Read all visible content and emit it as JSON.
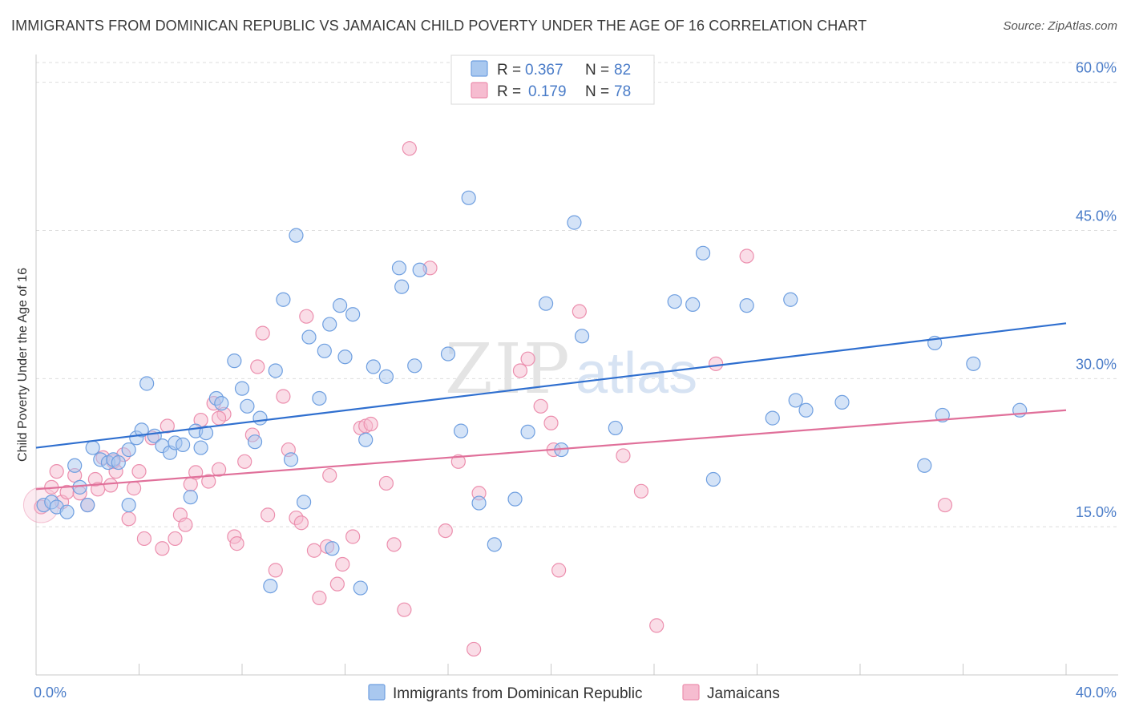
{
  "title": "IMMIGRANTS FROM DOMINICAN REPUBLIC VS JAMAICAN CHILD POVERTY UNDER THE AGE OF 16 CORRELATION CHART",
  "source": "Source: ZipAtlas.com",
  "watermark": {
    "part1": "ZIP",
    "part2": "atlas"
  },
  "colors": {
    "blue_fill": "#a9c8ef",
    "blue_stroke": "#6f9fe0",
    "blue_line": "#2f6fcf",
    "pink_fill": "#f6bcd0",
    "pink_stroke": "#ec8fae",
    "pink_line": "#e0709a",
    "axis_text": "#4a7cc8",
    "grid": "#dddddd"
  },
  "legend": {
    "items": [
      {
        "r_label": "R =",
        "r_value": "0.367",
        "n_label": "N =",
        "n_value": "82"
      },
      {
        "r_label": "R =",
        "r_value": "0.179",
        "n_label": "N =",
        "n_value": "78"
      }
    ]
  },
  "bottom_legend": [
    "Immigrants from Dominican Republic",
    "Jamaicans"
  ],
  "chart_data": {
    "type": "scatter",
    "ylabel": "Child Poverty Under the Age of 16",
    "xlim": [
      0,
      40
    ],
    "ylim": [
      0,
      62
    ],
    "x_tick_labels": [
      "0.0%",
      "40.0%"
    ],
    "y_ticks": [
      15,
      30,
      45,
      60
    ],
    "y_tick_labels": [
      "15.0%",
      "30.0%",
      "45.0%",
      "60.0%"
    ],
    "grid": "horizontal dashed",
    "legend_position": "top-center",
    "series": [
      {
        "name": "Immigrants from Dominican Republic",
        "color": "blue",
        "trend": {
          "x": [
            0,
            40
          ],
          "y": [
            23.0,
            35.6
          ]
        },
        "points": [
          [
            0.3,
            17.2
          ],
          [
            0.6,
            17.5
          ],
          [
            0.8,
            17.0
          ],
          [
            1.2,
            16.5
          ],
          [
            1.5,
            21.2
          ],
          [
            1.7,
            19.0
          ],
          [
            2.0,
            17.2
          ],
          [
            2.2,
            23.0
          ],
          [
            2.5,
            21.8
          ],
          [
            2.8,
            21.5
          ],
          [
            3.0,
            21.8
          ],
          [
            3.2,
            21.5
          ],
          [
            3.6,
            22.8
          ],
          [
            3.9,
            24.0
          ],
          [
            4.1,
            24.8
          ],
          [
            4.3,
            29.5
          ],
          [
            4.6,
            24.2
          ],
          [
            4.9,
            23.2
          ],
          [
            5.2,
            22.5
          ],
          [
            5.4,
            23.5
          ],
          [
            5.7,
            23.3
          ],
          [
            6.0,
            18.0
          ],
          [
            6.2,
            24.7
          ],
          [
            6.4,
            23.0
          ],
          [
            6.6,
            24.5
          ],
          [
            7.0,
            28.0
          ],
          [
            7.2,
            27.5
          ],
          [
            7.7,
            31.8
          ],
          [
            8.0,
            29.0
          ],
          [
            8.2,
            27.2
          ],
          [
            8.5,
            23.6
          ],
          [
            8.7,
            26.0
          ],
          [
            9.3,
            30.8
          ],
          [
            9.6,
            38.0
          ],
          [
            9.9,
            21.8
          ],
          [
            10.1,
            44.5
          ],
          [
            10.4,
            17.5
          ],
          [
            10.6,
            34.2
          ],
          [
            11.0,
            28.0
          ],
          [
            11.2,
            32.8
          ],
          [
            11.4,
            35.5
          ],
          [
            11.8,
            37.4
          ],
          [
            12.0,
            32.2
          ],
          [
            12.3,
            36.5
          ],
          [
            12.8,
            23.8
          ],
          [
            13.1,
            31.2
          ],
          [
            13.6,
            30.2
          ],
          [
            14.1,
            41.2
          ],
          [
            14.2,
            39.3
          ],
          [
            14.7,
            31.3
          ],
          [
            14.9,
            41.0
          ],
          [
            16.0,
            32.5
          ],
          [
            16.5,
            24.7
          ],
          [
            16.8,
            48.3
          ],
          [
            17.2,
            17.4
          ],
          [
            17.8,
            13.2
          ],
          [
            18.6,
            17.8
          ],
          [
            19.1,
            24.6
          ],
          [
            19.8,
            37.6
          ],
          [
            20.4,
            22.8
          ],
          [
            20.9,
            45.8
          ],
          [
            21.2,
            34.3
          ],
          [
            22.5,
            25.0
          ],
          [
            24.8,
            37.8
          ],
          [
            25.5,
            37.5
          ],
          [
            25.9,
            42.7
          ],
          [
            26.3,
            19.8
          ],
          [
            27.6,
            37.4
          ],
          [
            28.6,
            26.0
          ],
          [
            29.3,
            38.0
          ],
          [
            29.5,
            27.8
          ],
          [
            29.9,
            26.8
          ],
          [
            31.3,
            27.6
          ],
          [
            34.5,
            21.2
          ],
          [
            34.9,
            33.6
          ],
          [
            35.2,
            26.3
          ],
          [
            36.4,
            31.5
          ],
          [
            38.2,
            26.8
          ],
          [
            3.6,
            17.2
          ],
          [
            9.1,
            9.0
          ],
          [
            11.5,
            12.8
          ],
          [
            12.6,
            8.8
          ]
        ]
      },
      {
        "name": "Jamaicans",
        "color": "pink",
        "trend": {
          "x": [
            0,
            40
          ],
          "y": [
            18.8,
            26.8
          ]
        },
        "points": [
          [
            0.2,
            17.0
          ],
          [
            0.6,
            19.0
          ],
          [
            0.8,
            20.6
          ],
          [
            1.0,
            17.5
          ],
          [
            1.2,
            18.5
          ],
          [
            1.5,
            20.2
          ],
          [
            1.7,
            18.4
          ],
          [
            2.0,
            17.2
          ],
          [
            2.3,
            19.8
          ],
          [
            2.4,
            18.8
          ],
          [
            2.6,
            22.0
          ],
          [
            2.9,
            19.2
          ],
          [
            3.1,
            20.6
          ],
          [
            3.4,
            22.3
          ],
          [
            3.6,
            15.8
          ],
          [
            3.8,
            18.9
          ],
          [
            4.0,
            20.6
          ],
          [
            4.2,
            13.8
          ],
          [
            4.5,
            24.0
          ],
          [
            4.9,
            12.8
          ],
          [
            5.1,
            25.2
          ],
          [
            5.4,
            13.8
          ],
          [
            5.6,
            16.2
          ],
          [
            5.8,
            15.2
          ],
          [
            6.0,
            19.3
          ],
          [
            6.2,
            20.5
          ],
          [
            6.4,
            25.8
          ],
          [
            6.7,
            19.6
          ],
          [
            6.9,
            27.5
          ],
          [
            7.1,
            20.8
          ],
          [
            7.3,
            26.4
          ],
          [
            7.7,
            14.0
          ],
          [
            7.8,
            13.3
          ],
          [
            8.1,
            21.6
          ],
          [
            8.4,
            24.3
          ],
          [
            8.6,
            31.2
          ],
          [
            8.8,
            34.6
          ],
          [
            9.0,
            16.2
          ],
          [
            9.3,
            10.6
          ],
          [
            9.6,
            28.2
          ],
          [
            9.8,
            22.8
          ],
          [
            10.1,
            15.9
          ],
          [
            10.3,
            15.4
          ],
          [
            10.5,
            36.3
          ],
          [
            10.8,
            12.6
          ],
          [
            11.0,
            7.8
          ],
          [
            11.3,
            13.0
          ],
          [
            11.4,
            20.2
          ],
          [
            11.7,
            9.2
          ],
          [
            11.9,
            11.2
          ],
          [
            12.3,
            14.0
          ],
          [
            12.6,
            25.0
          ],
          [
            12.8,
            25.2
          ],
          [
            13.0,
            25.4
          ],
          [
            13.6,
            19.4
          ],
          [
            13.9,
            13.2
          ],
          [
            14.3,
            6.6
          ],
          [
            14.5,
            53.3
          ],
          [
            15.3,
            41.2
          ],
          [
            15.9,
            14.6
          ],
          [
            16.4,
            21.6
          ],
          [
            17.0,
            2.6
          ],
          [
            17.2,
            18.4
          ],
          [
            18.8,
            30.8
          ],
          [
            19.1,
            32.0
          ],
          [
            19.6,
            27.2
          ],
          [
            20.0,
            25.5
          ],
          [
            20.1,
            22.8
          ],
          [
            20.3,
            10.6
          ],
          [
            21.1,
            36.8
          ],
          [
            22.8,
            22.2
          ],
          [
            23.5,
            18.6
          ],
          [
            24.1,
            5.0
          ],
          [
            26.4,
            31.5
          ],
          [
            27.6,
            42.4
          ],
          [
            35.3,
            17.2
          ],
          [
            7.1,
            26.0
          ],
          [
            3.0,
            21.6
          ]
        ]
      }
    ]
  }
}
